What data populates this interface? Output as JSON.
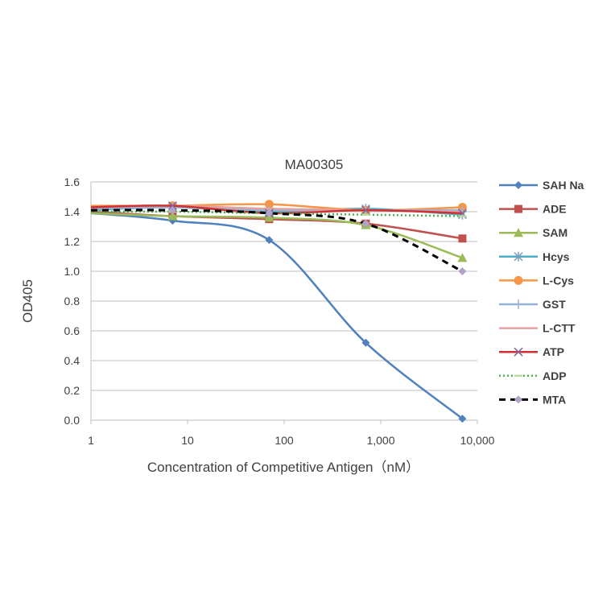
{
  "chart_data": {
    "type": "line",
    "title": "MA00305",
    "xlabel": "Concentration of Competitive Antigen（nM）",
    "ylabel": "OD405",
    "xscale": "log",
    "xlim": [
      1,
      10000
    ],
    "ylim": [
      0,
      1.6
    ],
    "x_ticks": [
      "1",
      "10",
      "100",
      "1,000",
      "10,000"
    ],
    "y_ticks": [
      "0.0",
      "0.2",
      "0.4",
      "0.6",
      "0.8",
      "1.0",
      "1.2",
      "1.4",
      "1.6"
    ],
    "grid": "horizontal",
    "legend_position": "right",
    "x": [
      1,
      7,
      70,
      700,
      7000
    ],
    "series": [
      {
        "name": "SAH Na",
        "color": "#4f81bd",
        "marker": "diamond",
        "dash": "solid",
        "values": [
          1.39,
          1.34,
          1.21,
          0.52,
          0.01
        ]
      },
      {
        "name": "ADE",
        "color": "#c0504d",
        "marker": "square",
        "dash": "solid",
        "values": [
          1.4,
          1.37,
          1.35,
          1.32,
          1.22
        ]
      },
      {
        "name": "SAM",
        "color": "#9bbb59",
        "marker": "triangle",
        "dash": "solid",
        "values": [
          1.39,
          1.37,
          1.36,
          1.31,
          1.09
        ]
      },
      {
        "name": "Hcys",
        "color": "#4bacc6",
        "marker": "star",
        "dash": "solid",
        "values": [
          1.41,
          1.43,
          1.4,
          1.42,
          1.38
        ]
      },
      {
        "name": "L-Cys",
        "color": "#f79646",
        "marker": "circle",
        "dash": "solid",
        "values": [
          1.44,
          1.44,
          1.45,
          1.41,
          1.43
        ]
      },
      {
        "name": "GST",
        "color": "#95b3d7",
        "marker": "plus",
        "dash": "solid",
        "values": [
          1.42,
          1.43,
          1.41,
          1.41,
          1.41
        ]
      },
      {
        "name": "L-CTT",
        "color": "#e6a0a0",
        "marker": "none",
        "dash": "solid",
        "values": [
          1.43,
          1.44,
          1.42,
          1.41,
          1.4
        ]
      },
      {
        "name": "ATP",
        "color": "#d03030",
        "marker": "x",
        "dash": "solid",
        "values": [
          1.43,
          1.44,
          1.39,
          1.41,
          1.39
        ]
      },
      {
        "name": "ADP",
        "color": "#4caf50",
        "marker": "dash",
        "dash": "dotted",
        "values": [
          1.4,
          1.4,
          1.39,
          1.38,
          1.37
        ]
      },
      {
        "name": "MTA",
        "color": "#000000",
        "marker": "diamond-lilac",
        "dash": "dashed",
        "values": [
          1.41,
          1.41,
          1.39,
          1.32,
          1.0
        ]
      }
    ]
  }
}
